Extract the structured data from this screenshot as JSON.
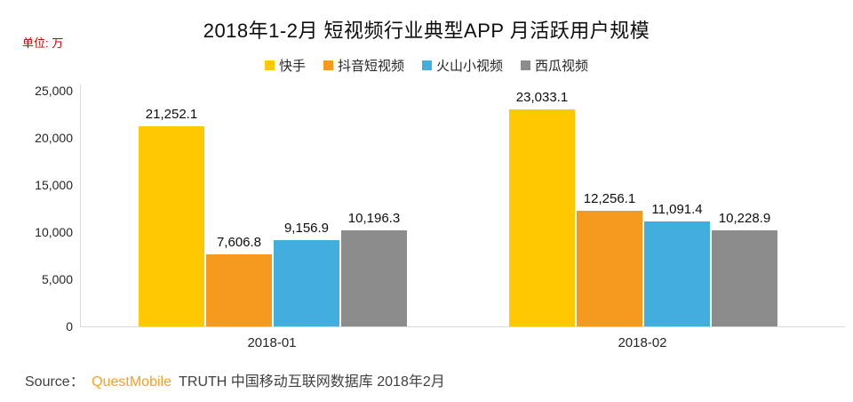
{
  "chart_data": {
    "type": "bar",
    "title": "2018年1-2月 短视频行业典型APP 月活跃用户规模",
    "unit_label": "单位: 万",
    "categories": [
      "2018-01",
      "2018-02"
    ],
    "series": [
      {
        "name": "快手",
        "color": "#FFC800",
        "values": [
          21252.1,
          23033.1
        ]
      },
      {
        "name": "抖音短视频",
        "color": "#F59A1C",
        "values": [
          7606.8,
          12256.1
        ]
      },
      {
        "name": "火山小视频",
        "color": "#42AEDD",
        "values": [
          9156.9,
          11091.4
        ]
      },
      {
        "name": "西瓜视频",
        "color": "#8C8C8C",
        "values": [
          10196.3,
          10228.9
        ]
      }
    ],
    "ylim": [
      0,
      25000
    ],
    "y_ticks": [
      0,
      5000,
      10000,
      15000,
      20000,
      25000
    ],
    "grid": false,
    "legend_position": "top",
    "value_labels": true,
    "xlabel": "",
    "ylabel": ""
  },
  "source": {
    "prefix": "Source：",
    "brand": "QuestMobile",
    "suffix": "TRUTH 中国移动互联网数据库 2018年2月"
  },
  "colors": {
    "axis": "#D9D9D9",
    "unit_label": "#C00000",
    "brand_orange": "#F7A021",
    "label_text": "#0D0D0D"
  }
}
